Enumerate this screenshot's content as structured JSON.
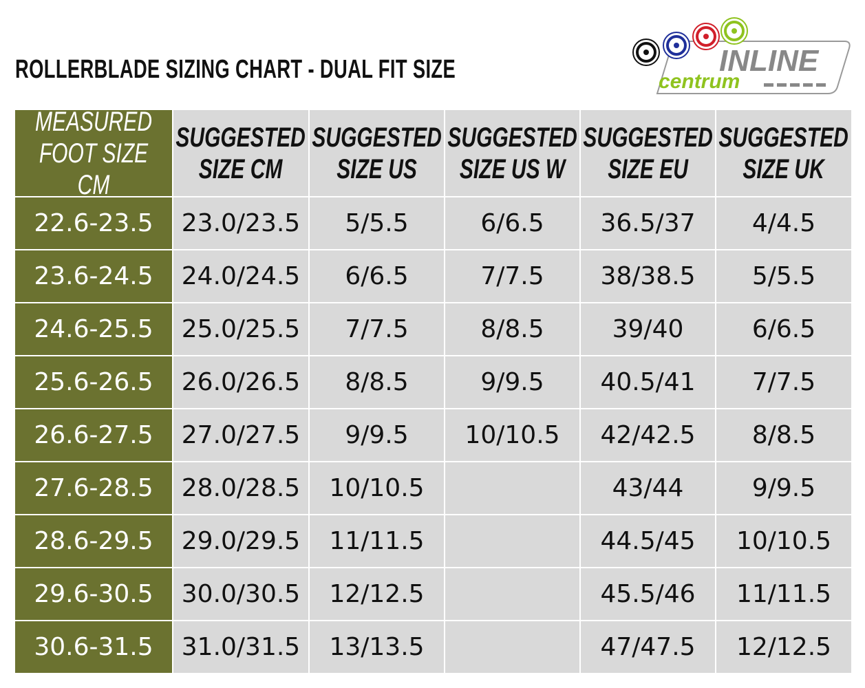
{
  "title": "ROLLERBLADE SIZING CHART - DUAL FIT SIZE",
  "logo": {
    "word1": "INLINE",
    "word2": "centrum",
    "colors": [
      "#111111",
      "#1f2f9a",
      "#d11f2a",
      "#8fc31f"
    ]
  },
  "colors": {
    "header_first": "#6b7230",
    "cell": "#d9d9d9"
  },
  "table": {
    "headers": [
      "MEASURED\nFOOT SIZE CM",
      "SUGGESTED\nSIZE CM",
      "SUGGESTED\nSIZE US",
      "SUGGESTED\nSIZE US W",
      "SUGGESTED\nSIZE EU",
      "SUGGESTED\nSIZE UK"
    ],
    "rows": [
      [
        "22.6-23.5",
        "23.0/23.5",
        "5/5.5",
        "6/6.5",
        "36.5/37",
        "4/4.5"
      ],
      [
        "23.6-24.5",
        "24.0/24.5",
        "6/6.5",
        "7/7.5",
        "38/38.5",
        "5/5.5"
      ],
      [
        "24.6-25.5",
        "25.0/25.5",
        "7/7.5",
        "8/8.5",
        "39/40",
        "6/6.5"
      ],
      [
        "25.6-26.5",
        "26.0/26.5",
        "8/8.5",
        "9/9.5",
        "40.5/41",
        "7/7.5"
      ],
      [
        "26.6-27.5",
        "27.0/27.5",
        "9/9.5",
        "10/10.5",
        "42/42.5",
        "8/8.5"
      ],
      [
        "27.6-28.5",
        "28.0/28.5",
        "10/10.5",
        "",
        "43/44",
        "9/9.5"
      ],
      [
        "28.6-29.5",
        "29.0/29.5",
        "11/11.5",
        "",
        "44.5/45",
        "10/10.5"
      ],
      [
        "29.6-30.5",
        "30.0/30.5",
        "12/12.5",
        "",
        "45.5/46",
        "11/11.5"
      ],
      [
        "30.6-31.5",
        "31.0/31.5",
        "13/13.5",
        "",
        "47/47.5",
        "12/12.5"
      ]
    ]
  }
}
